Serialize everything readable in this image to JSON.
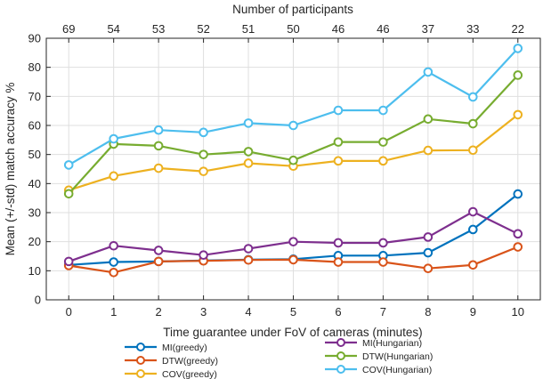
{
  "chart_data": {
    "type": "line",
    "title": "",
    "xlabel": "Time guarantee under FoV of cameras (minutes)",
    "ylabel": "Mean (+/-std) match accuracy %",
    "top_axis_label": "Number of participants",
    "x": [
      0,
      1,
      2,
      3,
      4,
      5,
      6,
      7,
      8,
      9,
      10
    ],
    "top_ticks": [
      "69",
      "54",
      "53",
      "52",
      "51",
      "50",
      "46",
      "46",
      "37",
      "33",
      "22"
    ],
    "xlim": [
      -0.5,
      10.5
    ],
    "ylim": [
      0,
      90
    ],
    "yticks": [
      0,
      10,
      20,
      30,
      40,
      50,
      60,
      70,
      80,
      90
    ],
    "grid": true,
    "legend_position": "bottom",
    "series": [
      {
        "name": "MI(greedy)",
        "color": "#0072BD",
        "values": [
          12.0,
          13.0,
          13.2,
          13.5,
          13.8,
          14.0,
          15.2,
          15.2,
          16.2,
          24.2,
          36.4
        ]
      },
      {
        "name": "DTW(greedy)",
        "color": "#D95319",
        "values": [
          11.8,
          9.4,
          13.2,
          13.4,
          13.7,
          13.8,
          13.0,
          13.0,
          10.8,
          12.0,
          18.2
        ]
      },
      {
        "name": "COV(greedy)",
        "color": "#EDB120",
        "values": [
          37.7,
          42.6,
          45.3,
          44.2,
          47.0,
          46.0,
          47.8,
          47.8,
          51.4,
          51.5,
          63.7
        ]
      },
      {
        "name": "MI(Hungarian)",
        "color": "#7E2F8E",
        "values": [
          13.2,
          18.6,
          17.0,
          15.4,
          17.6,
          20.0,
          19.6,
          19.6,
          21.6,
          30.3,
          22.7
        ]
      },
      {
        "name": "DTW(Hungarian)",
        "color": "#77AC30",
        "values": [
          36.5,
          53.6,
          53.0,
          50.0,
          51.0,
          48.0,
          54.3,
          54.3,
          62.2,
          60.6,
          77.3
        ]
      },
      {
        "name": "COV(Hungarian)",
        "color": "#4DBEEE",
        "values": [
          46.4,
          55.4,
          58.4,
          57.6,
          60.8,
          60.0,
          65.2,
          65.2,
          78.4,
          69.8,
          86.5
        ]
      }
    ],
    "legend_columns": [
      [
        "MI(greedy)",
        "DTW(greedy)",
        "COV(greedy)"
      ],
      [
        "MI(Hungarian)",
        "DTW(Hungarian)",
        "COV(Hungarian)"
      ]
    ]
  }
}
